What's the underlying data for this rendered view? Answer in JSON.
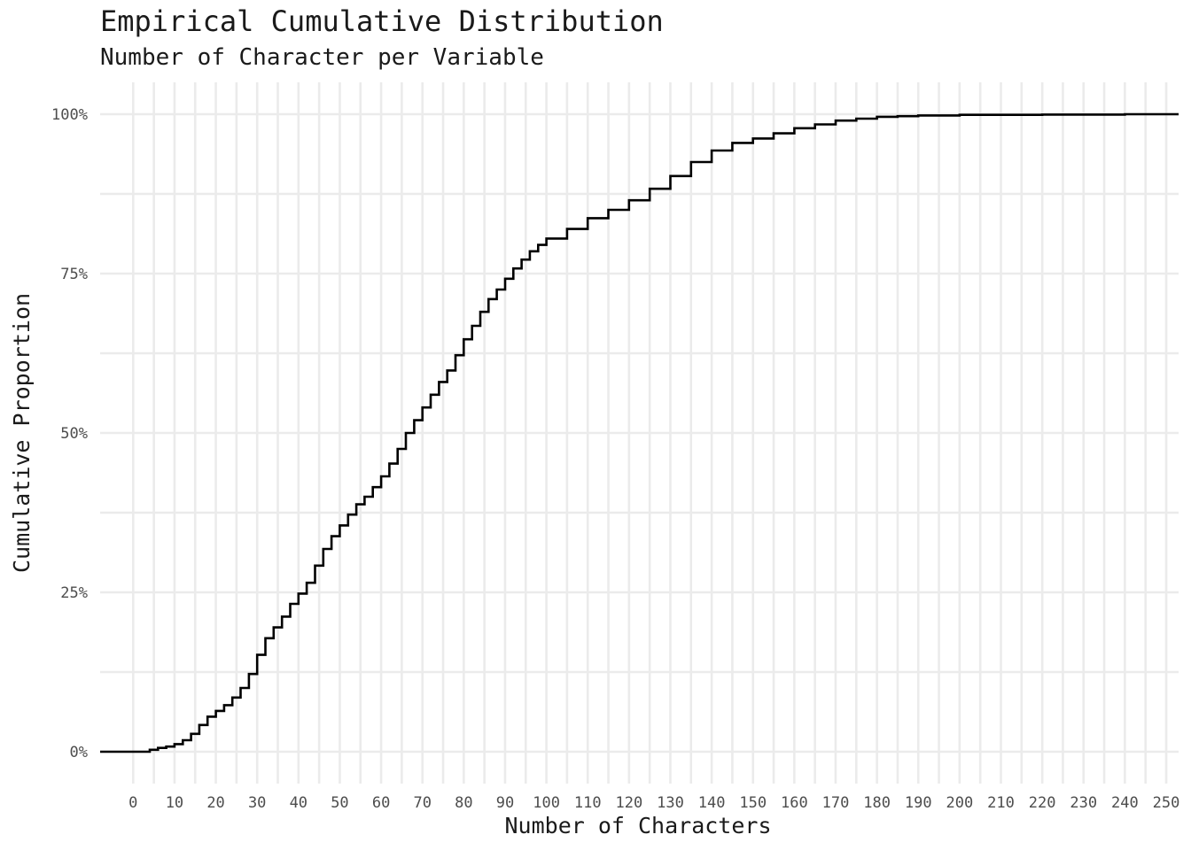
{
  "chart_data": {
    "type": "line",
    "subtype": "step-ecdf",
    "title": "Empirical Cumulative Distribution",
    "subtitle": "Number of Character per Variable",
    "xlabel": "Number of Characters",
    "ylabel": "Cumulative Proportion",
    "xlim": [
      -8,
      253
    ],
    "ylim": [
      0,
      1
    ],
    "x_ticks": [
      0,
      10,
      20,
      30,
      40,
      50,
      60,
      70,
      80,
      90,
      100,
      110,
      120,
      130,
      140,
      150,
      160,
      170,
      180,
      190,
      200,
      210,
      220,
      230,
      240,
      250
    ],
    "x_tick_labels": [
      "0",
      "10",
      "20",
      "30",
      "40",
      "50",
      "60",
      "70",
      "80",
      "90",
      "100",
      "110",
      "120",
      "130",
      "140",
      "150",
      "160",
      "170",
      "180",
      "190",
      "200",
      "210",
      "220",
      "230",
      "240",
      "250"
    ],
    "y_ticks": [
      0,
      0.25,
      0.5,
      0.75,
      1
    ],
    "y_tick_labels": [
      "0%",
      "25%",
      "50%",
      "75%",
      "100%"
    ],
    "grid": true,
    "legend": "none",
    "line_color": "#000000",
    "series": [
      {
        "x": [
          -8,
          4,
          6,
          8,
          10,
          12,
          14,
          16,
          18,
          20,
          22,
          24,
          26,
          28,
          30,
          32,
          34,
          36,
          38,
          40,
          42,
          44,
          46,
          48,
          50,
          52,
          54,
          56,
          58,
          60,
          62,
          64,
          66,
          68,
          70,
          72,
          74,
          76,
          78,
          80,
          82,
          84,
          86,
          88,
          90,
          92,
          94,
          96,
          98,
          100,
          105,
          110,
          115,
          120,
          125,
          130,
          135,
          140,
          145,
          150,
          155,
          160,
          165,
          170,
          175,
          180,
          185,
          190,
          200,
          220,
          240,
          253
        ],
        "y": [
          0,
          0.003,
          0.006,
          0.008,
          0.012,
          0.018,
          0.028,
          0.042,
          0.055,
          0.064,
          0.073,
          0.085,
          0.1,
          0.122,
          0.152,
          0.178,
          0.195,
          0.212,
          0.232,
          0.248,
          0.265,
          0.292,
          0.318,
          0.338,
          0.355,
          0.372,
          0.388,
          0.4,
          0.415,
          0.432,
          0.452,
          0.475,
          0.5,
          0.52,
          0.54,
          0.56,
          0.58,
          0.598,
          0.622,
          0.647,
          0.668,
          0.69,
          0.71,
          0.725,
          0.742,
          0.758,
          0.772,
          0.785,
          0.795,
          0.805,
          0.82,
          0.837,
          0.85,
          0.865,
          0.883,
          0.903,
          0.925,
          0.943,
          0.955,
          0.962,
          0.97,
          0.978,
          0.984,
          0.99,
          0.993,
          0.996,
          0.997,
          0.998,
          0.999,
          0.9995,
          1.0,
          1.0
        ]
      }
    ]
  }
}
